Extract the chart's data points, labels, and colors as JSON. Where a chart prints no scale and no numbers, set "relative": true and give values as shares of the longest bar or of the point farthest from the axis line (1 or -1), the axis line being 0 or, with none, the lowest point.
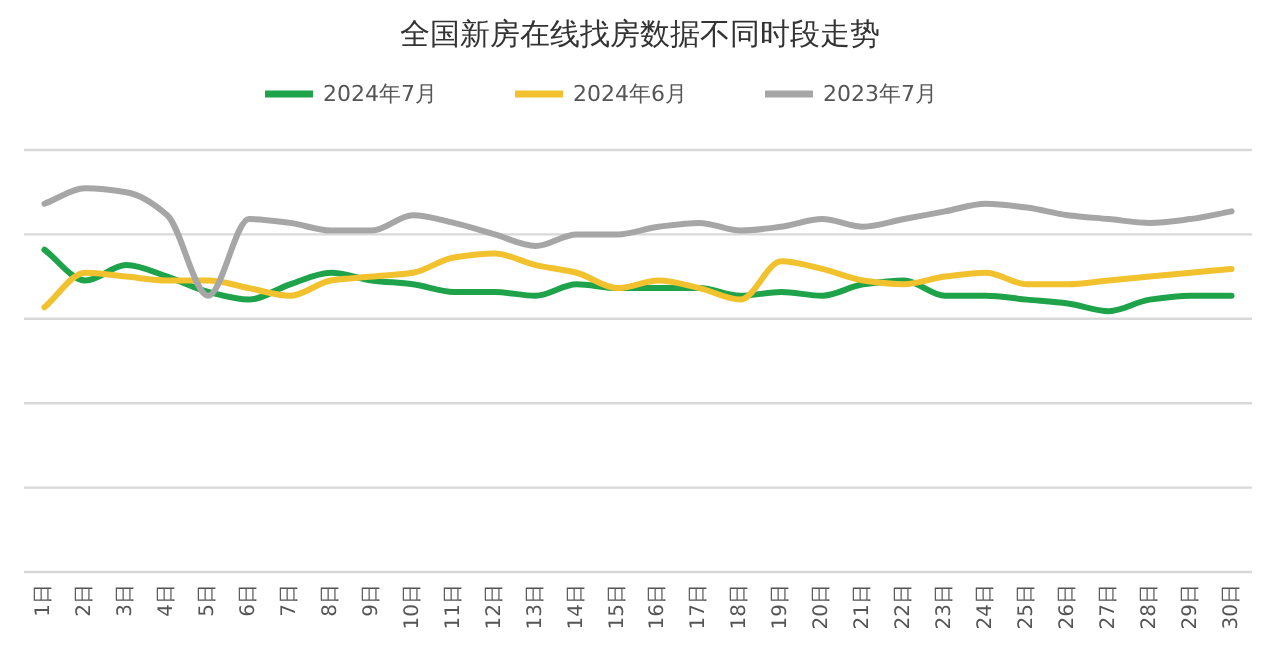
{
  "chart_data": {
    "type": "line",
    "title": "全国新房在线找房数据不同时段走势",
    "relative": true,
    "grid": "y",
    "legend": "top",
    "categories": [
      "1日",
      "2日",
      "3日",
      "4日",
      "5日",
      "6日",
      "7日",
      "8日",
      "9日",
      "10日",
      "11日",
      "12日",
      "13日",
      "14日",
      "15日",
      "16日",
      "17日",
      "18日",
      "19日",
      "20日",
      "21日",
      "22日",
      "23日",
      "24日",
      "25日",
      "26日",
      "27日",
      "28日",
      "29日",
      "30日"
    ],
    "series": [
      {
        "name": "2024年7月",
        "color": "#1fa34a",
        "values": [
          0.84,
          0.76,
          0.8,
          0.77,
          0.73,
          0.71,
          0.75,
          0.78,
          0.76,
          0.75,
          0.73,
          0.73,
          0.72,
          0.75,
          0.74,
          0.74,
          0.74,
          0.72,
          0.73,
          0.72,
          0.75,
          0.76,
          0.72,
          0.72,
          0.71,
          0.7,
          0.68,
          0.71,
          0.72,
          0.72
        ]
      },
      {
        "name": "2024年6月",
        "color": "#f2c12e",
        "values": [
          0.69,
          0.78,
          0.77,
          0.76,
          0.76,
          0.74,
          0.72,
          0.76,
          0.77,
          0.78,
          0.82,
          0.83,
          0.8,
          0.78,
          0.74,
          0.76,
          0.74,
          0.71,
          0.81,
          0.79,
          0.76,
          0.75,
          0.77,
          0.78,
          0.75,
          0.75,
          0.76,
          0.77,
          0.78,
          0.79
        ]
      },
      {
        "name": "2023年7月",
        "color": "#a6a6a6",
        "values": [
          0.96,
          1,
          0.99,
          0.93,
          0.72,
          0.92,
          0.91,
          0.89,
          0.89,
          0.93,
          0.91,
          0.88,
          0.85,
          0.88,
          0.88,
          0.9,
          0.91,
          0.89,
          0.9,
          0.92,
          0.9,
          0.92,
          0.94,
          0.96,
          0.95,
          0.93,
          0.92,
          0.91,
          0.92,
          0.94
        ]
      }
    ]
  }
}
